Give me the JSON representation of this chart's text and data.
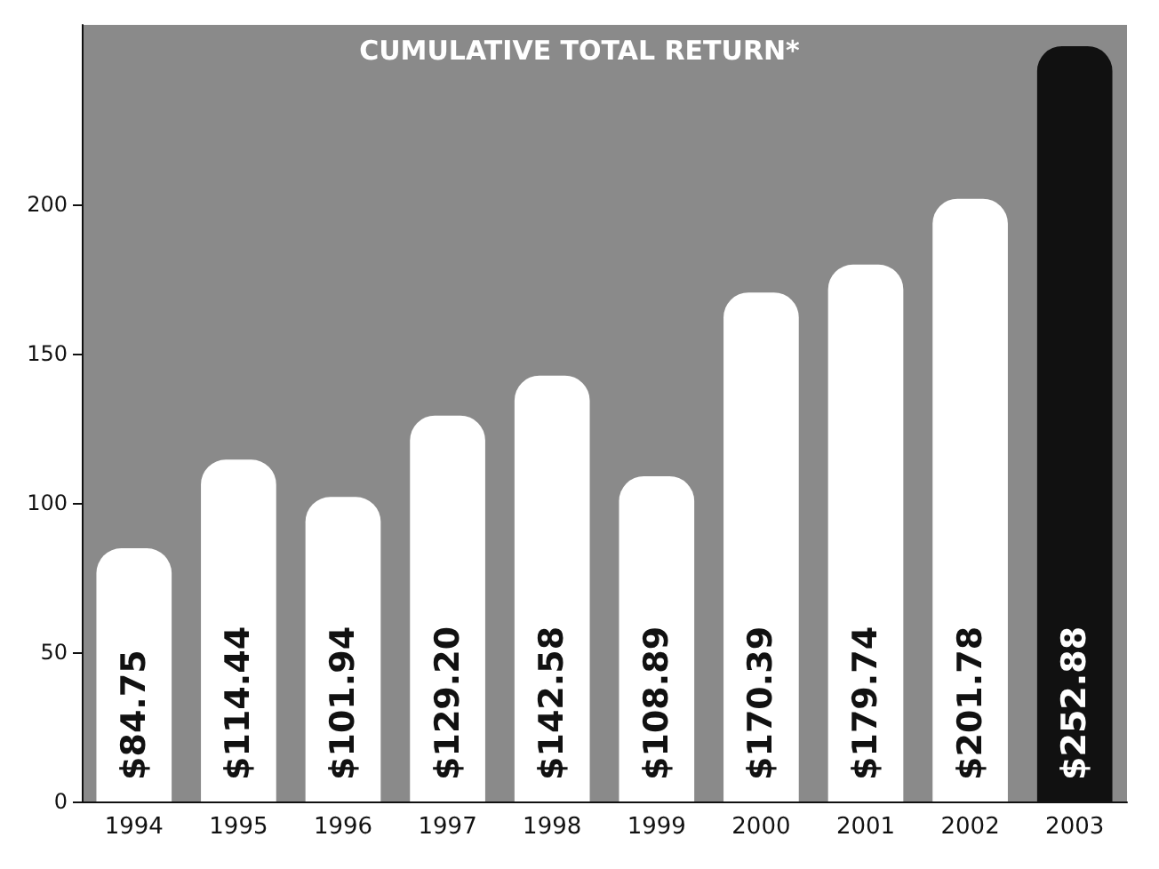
{
  "chart_data": {
    "type": "bar",
    "title": "CUMULATIVE TOTAL RETURN*",
    "categories": [
      "1994",
      "1995",
      "1996",
      "1997",
      "1998",
      "1999",
      "2000",
      "2001",
      "2002",
      "2003"
    ],
    "values": [
      84.75,
      114.44,
      101.94,
      129.2,
      142.58,
      108.89,
      170.39,
      179.74,
      201.78,
      252.88
    ],
    "colors": [
      "#ffffff",
      "#ffffff",
      "#ffffff",
      "#ffffff",
      "#ffffff",
      "#ffffff",
      "#ffffff",
      "#ffffff",
      "#ffffff",
      "#111111"
    ],
    "value_labels": [
      "$84.75",
      "$114.44",
      "$101.94",
      "$129.20",
      "$142.58",
      "$108.89",
      "$170.39",
      "$179.74",
      "$201.78",
      "$252.88"
    ],
    "ylim": [
      0,
      260
    ],
    "yticks": [
      0,
      50,
      100,
      150,
      200
    ],
    "grid": false
  }
}
